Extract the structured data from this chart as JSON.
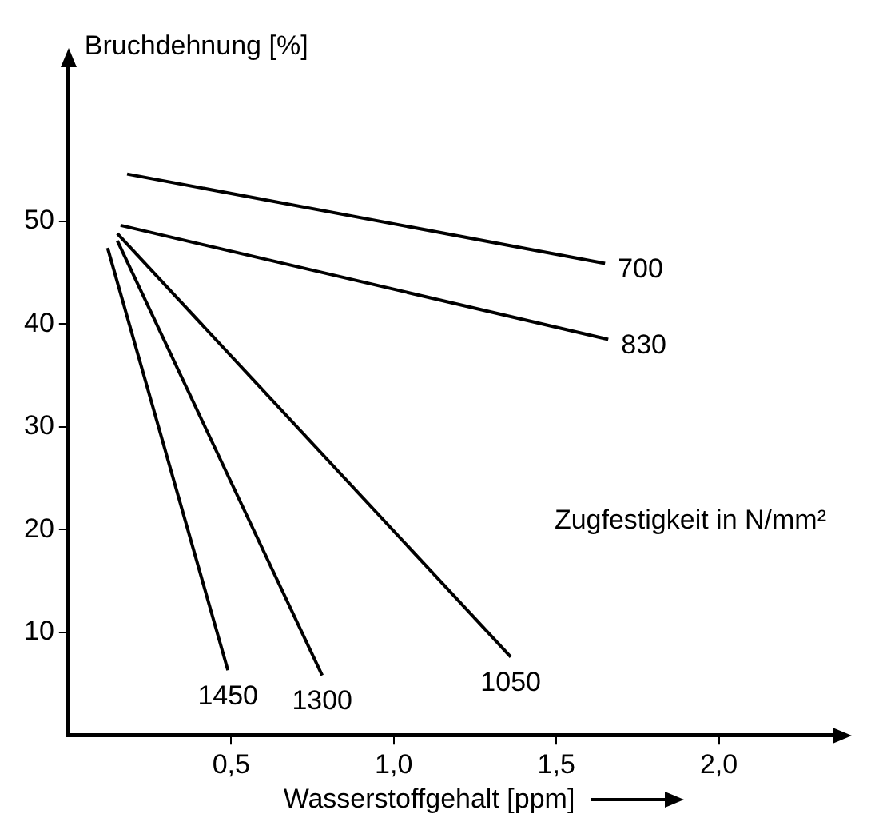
{
  "chart_data": {
    "type": "line",
    "xlabel": "Wasserstoffgehalt [ppm]",
    "ylabel": "Bruchdehnung [%]",
    "annotations": [
      "Zugfestigkeit in N/mm²"
    ],
    "series": [
      {
        "name": "700",
        "color": "#000000",
        "x": [
          0.18,
          1.65
        ],
        "values": [
          54.6,
          45.9
        ]
      },
      {
        "name": "830",
        "color": "#000000",
        "x": [
          0.16,
          1.66
        ],
        "values": [
          49.6,
          38.5
        ]
      },
      {
        "name": "1050",
        "color": "#000000",
        "x": [
          0.15,
          1.36
        ],
        "values": [
          48.8,
          7.6
        ]
      },
      {
        "name": "1300",
        "color": "#000000",
        "x": [
          0.15,
          0.78
        ],
        "values": [
          48.1,
          5.8
        ]
      },
      {
        "name": "1450",
        "color": "#000000",
        "x": [
          0.12,
          0.49
        ],
        "values": [
          47.4,
          6.3
        ]
      }
    ],
    "xlim": [
      0,
      2.35
    ],
    "ylim": [
      0,
      65
    ],
    "xticks": [
      {
        "value": 0.5,
        "label": "0,5"
      },
      {
        "value": 1.0,
        "label": "1,0"
      },
      {
        "value": 1.5,
        "label": "1,5"
      },
      {
        "value": 2.0,
        "label": "2,0"
      }
    ],
    "yticks": [
      10,
      20,
      30,
      40,
      50
    ],
    "grid": false,
    "legend": false,
    "marker": "none",
    "line_style": "solid"
  }
}
